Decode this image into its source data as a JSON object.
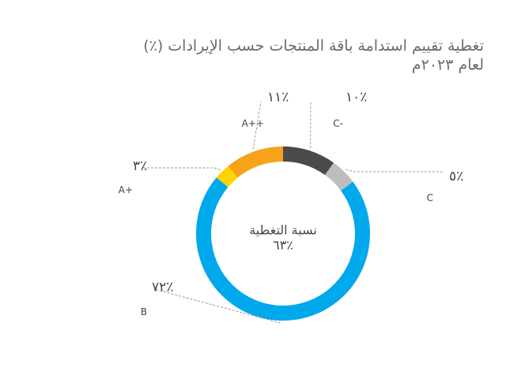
{
  "chart_data": {
    "type": "donut",
    "title": "تغطية تقييم استدامة باقة المنتجات حسب الإيرادات (٪)",
    "subtitle": "لعام ٢٠٢٣م",
    "center_label": "نسبة التغطية",
    "center_value": "٪٦٣",
    "slices": [
      {
        "grade": "C-",
        "label": "٪١٠",
        "value": 10,
        "color": "#4a4a4a"
      },
      {
        "grade": "C",
        "label": "٪٥",
        "value": 5,
        "color": "#bdbdbd"
      },
      {
        "grade": "B",
        "label": "٪٧٢",
        "value": 72,
        "color": "#00a8ec"
      },
      {
        "grade": "A+",
        "label": "٪٣",
        "value": 3,
        "color": "#ffd400"
      },
      {
        "grade": "A++",
        "label": "٪١١",
        "value": 11,
        "color": "#f7a21a"
      }
    ]
  }
}
